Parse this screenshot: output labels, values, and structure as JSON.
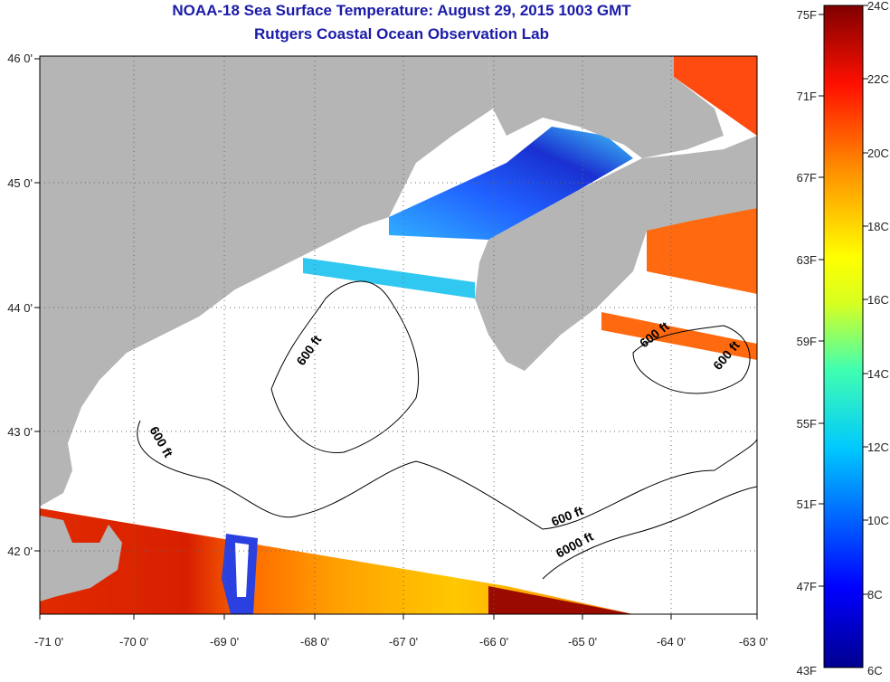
{
  "title": {
    "line1": "NOAA-18 Sea Surface Temperature:  August 29, 2015 1003 GMT",
    "line2": "Rutgers Coastal Ocean Observation Lab"
  },
  "axes": {
    "x_ticks": [
      "-71 0'",
      "-70 0'",
      "-69 0'",
      "-68 0'",
      "-67 0'",
      "-66 0'",
      "-65 0'",
      "-64 0'",
      "-63 0'"
    ],
    "y_ticks": [
      "46 0'",
      "45 0'",
      "44 0'",
      "43 0'",
      "42 0'"
    ]
  },
  "contour_labels": [
    {
      "text": "600 ft",
      "name": "contour-label-600ft-a"
    },
    {
      "text": "600 ft",
      "name": "contour-label-600ft-b"
    },
    {
      "text": "600 ft",
      "name": "contour-label-600ft-c"
    },
    {
      "text": "600 ft",
      "name": "contour-label-600ft-d"
    },
    {
      "text": "600 ft",
      "name": "contour-label-600ft-e"
    },
    {
      "text": "6000 ft",
      "name": "contour-label-6000ft"
    }
  ],
  "colorbar": {
    "fahrenheit": [
      "75F",
      "71F",
      "67F",
      "63F",
      "59F",
      "55F",
      "51F",
      "47F",
      "43F"
    ],
    "celsius": [
      "24C",
      "22C",
      "20C",
      "18C",
      "16C",
      "14C",
      "12C",
      "10C",
      "8C",
      "6C"
    ]
  },
  "colors": {
    "land": "#b5b5b5",
    "ocean_nodata": "#ffffff",
    "title": "#1b1ba8"
  }
}
